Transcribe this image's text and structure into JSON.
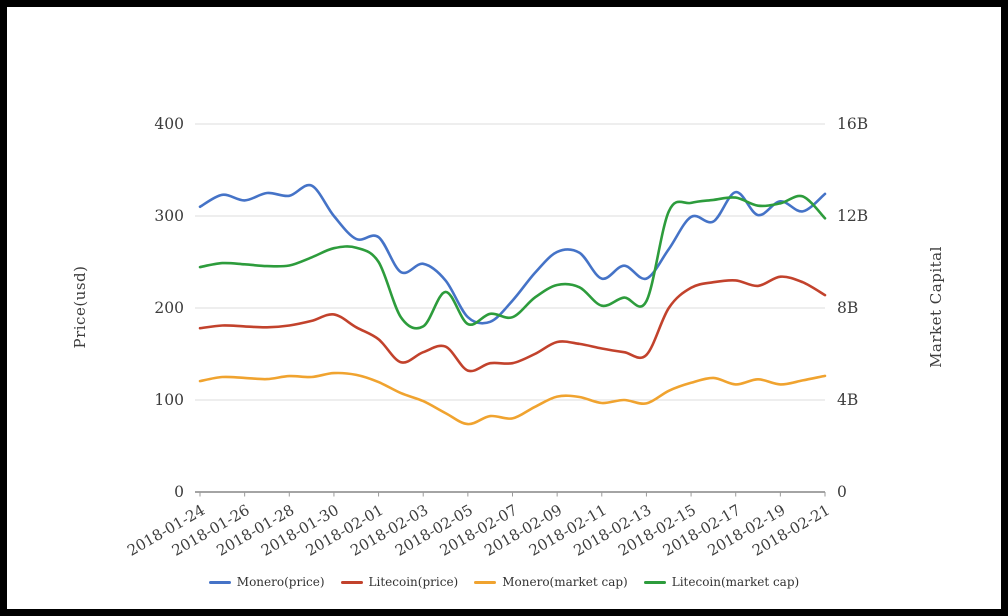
{
  "axes": {
    "left": {
      "title": "Price(usd)",
      "tick_labels": [
        "0",
        "100",
        "200",
        "300",
        "400"
      ],
      "tick_values": [
        0,
        100,
        200,
        300,
        400
      ],
      "range": [
        0,
        400
      ]
    },
    "right": {
      "title": "Market Capital",
      "tick_labels": [
        "0",
        "4B",
        "8B",
        "12B",
        "16B"
      ],
      "tick_values": [
        0,
        4,
        8,
        12,
        16
      ],
      "range": [
        0,
        16
      ],
      "unit": "B"
    },
    "x": {
      "tick_labels": [
        "2018-01-24",
        "2018-01-26",
        "2018-01-28",
        "2018-01-30",
        "2018-02-01",
        "2018-02-03",
        "2018-02-05",
        "2018-02-07",
        "2018-02-09",
        "2018-02-11",
        "2018-02-13",
        "2018-02-15",
        "2018-02-17",
        "2018-02-19",
        "2018-02-21"
      ]
    }
  },
  "colors": {
    "monero_price": "#4573c7",
    "litecoin_price": "#c2422c",
    "monero_cap": "#f0a32f",
    "litecoin_cap": "#2d9c3c",
    "gridline": "#dcdcdc",
    "axis_line": "#6e6e6e",
    "tick_text": "#3d3d3d",
    "frame": "#000000"
  },
  "chart_data": {
    "type": "line",
    "smoothing": "spline",
    "grid": "horizontal-only",
    "legend_position": "bottom-center",
    "x": [
      "2018-01-24",
      "2018-01-25",
      "2018-01-26",
      "2018-01-27",
      "2018-01-28",
      "2018-01-29",
      "2018-01-30",
      "2018-01-31",
      "2018-02-01",
      "2018-02-02",
      "2018-02-03",
      "2018-02-04",
      "2018-02-05",
      "2018-02-06",
      "2018-02-07",
      "2018-02-08",
      "2018-02-09",
      "2018-02-10",
      "2018-02-11",
      "2018-02-12",
      "2018-02-13",
      "2018-02-14",
      "2018-02-15",
      "2018-02-16",
      "2018-02-17",
      "2018-02-18",
      "2018-02-19",
      "2018-02-20",
      "2018-02-21"
    ],
    "left_ylim": [
      0,
      400
    ],
    "right_ylim_billions": [
      0,
      16
    ],
    "series": [
      {
        "name": "Monero(price)",
        "axis": "left",
        "color": "#4573c7",
        "values": [
          310,
          323,
          317,
          325,
          322,
          333,
          300,
          275,
          277,
          239,
          248,
          230,
          190,
          185,
          208,
          238,
          261,
          260,
          232,
          246,
          232,
          264,
          299,
          294,
          326,
          301,
          316,
          305,
          324
        ]
      },
      {
        "name": "Litecoin(price)",
        "axis": "left",
        "color": "#c2422c",
        "values": [
          178,
          181,
          180,
          179,
          181,
          186,
          193,
          179,
          166,
          141,
          152,
          158,
          132,
          140,
          140,
          150,
          163,
          161,
          156,
          152,
          149,
          200,
          222,
          228,
          230,
          224,
          234,
          228,
          214
        ]
      },
      {
        "name": "Monero(market cap)",
        "axis": "right",
        "unit": "B",
        "color": "#f0a32f",
        "values": [
          4.82,
          5.0,
          4.96,
          4.91,
          5.04,
          5.0,
          5.17,
          5.09,
          4.78,
          4.3,
          3.95,
          3.43,
          2.95,
          3.3,
          3.2,
          3.7,
          4.15,
          4.13,
          3.87,
          4.0,
          3.85,
          4.4,
          4.75,
          4.96,
          4.68,
          4.9,
          4.68,
          4.85,
          5.05
        ]
      },
      {
        "name": "Litecoin(market cap)",
        "axis": "right",
        "unit": "B",
        "color": "#2d9c3c",
        "values": [
          9.78,
          9.95,
          9.9,
          9.82,
          9.85,
          10.2,
          10.6,
          10.62,
          10.0,
          7.6,
          7.2,
          8.7,
          7.3,
          7.75,
          7.6,
          8.45,
          9.0,
          8.9,
          8.1,
          8.45,
          8.3,
          12.2,
          12.57,
          12.7,
          12.8,
          12.45,
          12.55,
          12.85,
          11.9
        ]
      }
    ]
  }
}
